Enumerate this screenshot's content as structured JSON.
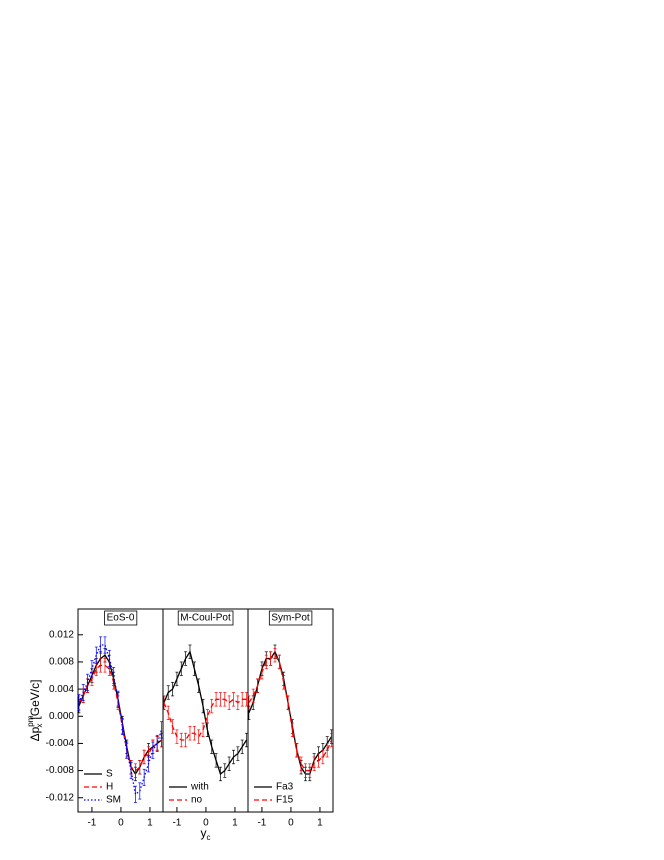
{
  "chart_data": [
    {
      "type": "line",
      "title": "EoS-0",
      "y_label": {
        "base": "Δp",
        "sup": "pm",
        "sub": "x",
        "unit": "[GeV/c]"
      },
      "x": [
        -1.45,
        -1.3,
        -1.15,
        -1.0,
        -0.85,
        -0.7,
        -0.55,
        -0.4,
        -0.25,
        -0.1,
        0.05,
        0.2,
        0.35,
        0.5,
        0.65,
        0.8,
        0.95,
        1.1,
        1.25,
        1.4
      ],
      "series": [
        {
          "name": "S",
          "color": "#000000",
          "dash": "solid",
          "values": [
            0.0015,
            0.003,
            0.0045,
            0.006,
            0.0075,
            0.0085,
            0.009,
            0.008,
            0.0055,
            0.0025,
            -0.001,
            -0.0045,
            -0.0075,
            -0.0085,
            -0.0075,
            -0.006,
            -0.005,
            -0.0045,
            -0.004,
            -0.0035
          ],
          "errors": [
            0.001,
            0.001,
            0.001,
            0.001,
            0.001,
            0.001,
            0.001,
            0.001,
            0.001,
            0.001,
            0.001,
            0.001,
            0.001,
            0.001,
            0.001,
            0.001,
            0.001,
            0.001,
            0.001,
            0.001
          ]
        },
        {
          "name": "H",
          "color": "#ff0000",
          "dash": "dashed",
          "values": [
            0.002,
            0.003,
            0.0045,
            0.0055,
            0.007,
            0.0075,
            0.0075,
            0.007,
            0.005,
            0.002,
            -0.0015,
            -0.005,
            -0.0075,
            -0.008,
            -0.0075,
            -0.006,
            -0.0055,
            -0.0045,
            -0.004,
            -0.0035
          ],
          "errors": [
            0.001,
            0.001,
            0.001,
            0.001,
            0.001,
            0.001,
            0.001,
            0.001,
            0.001,
            0.001,
            0.001,
            0.001,
            0.001,
            0.001,
            0.001,
            0.001,
            0.001,
            0.001,
            0.001,
            0.001
          ]
        },
        {
          "name": "SM",
          "color": "#0000ff",
          "dash": "dotted",
          "values": [
            0.002,
            0.0035,
            0.005,
            0.007,
            0.009,
            0.0105,
            0.0105,
            0.0085,
            0.006,
            0.0025,
            -0.0015,
            -0.005,
            -0.008,
            -0.0115,
            -0.011,
            -0.009,
            -0.007,
            -0.005,
            -0.004,
            -0.002
          ],
          "errors": [
            0.0012,
            0.0012,
            0.0012,
            0.0012,
            0.0012,
            0.0012,
            0.0012,
            0.0012,
            0.0012,
            0.0012,
            0.0012,
            0.0012,
            0.0012,
            0.0012,
            0.0012,
            0.0012,
            0.0012,
            0.0012,
            0.0012,
            0.0012
          ]
        }
      ],
      "xlim": [
        -1.48,
        1.45
      ],
      "xticks": [
        -1,
        0,
        1
      ],
      "ylim": [
        -0.0141,
        0.0158
      ],
      "yticks": [
        0.012,
        0.008,
        0.004,
        {
          "value": 0,
          "label": "0.000"
        },
        -0.004,
        -0.008,
        -0.012
      ],
      "legend": "lower left"
    },
    {
      "type": "line",
      "title": "M-Coul-Pot",
      "x_label": {
        "base": "y",
        "sub": "c"
      },
      "x": [
        -1.45,
        -1.3,
        -1.15,
        -1.0,
        -0.85,
        -0.7,
        -0.55,
        -0.4,
        -0.25,
        -0.1,
        0.05,
        0.2,
        0.35,
        0.5,
        0.65,
        0.8,
        0.95,
        1.1,
        1.25,
        1.4
      ],
      "series": [
        {
          "name": "with",
          "color": "#000000",
          "dash": "solid",
          "values": [
            0.002,
            0.0035,
            0.004,
            0.0055,
            0.007,
            0.0085,
            0.0095,
            0.007,
            0.0045,
            0.0015,
            -0.002,
            -0.0045,
            -0.0065,
            -0.0085,
            -0.008,
            -0.007,
            -0.006,
            -0.0055,
            -0.0045,
            -0.0035
          ],
          "errors": [
            0.001,
            0.001,
            0.001,
            0.001,
            0.001,
            0.001,
            0.001,
            0.001,
            0.001,
            0.001,
            0.001,
            0.001,
            0.001,
            0.001,
            0.001,
            0.001,
            0.001,
            0.001,
            0.001,
            0.001
          ]
        },
        {
          "name": "no",
          "color": "#ff0000",
          "dash": "dashed",
          "values": [
            0.002,
            0.0005,
            -0.0015,
            -0.003,
            -0.0035,
            -0.0035,
            -0.0025,
            -0.0025,
            -0.003,
            -0.002,
            0,
            0.0015,
            0.0025,
            0.0025,
            0.0025,
            0.002,
            0.0025,
            0.002,
            0.0025,
            0.0025
          ],
          "errors": [
            0.001,
            0.001,
            0.001,
            0.001,
            0.001,
            0.001,
            0.001,
            0.001,
            0.001,
            0.001,
            0.001,
            0.001,
            0.001,
            0.001,
            0.001,
            0.001,
            0.001,
            0.001,
            0.001,
            0.001
          ]
        }
      ],
      "xlim": [
        -1.48,
        1.45
      ],
      "xticks": [
        -1,
        0,
        1
      ],
      "ylim": [
        -0.0141,
        0.0158
      ],
      "legend": "lower left"
    },
    {
      "type": "line",
      "title": "Sym-Pot",
      "x": [
        -1.45,
        -1.3,
        -1.15,
        -1.0,
        -0.85,
        -0.7,
        -0.55,
        -0.4,
        -0.25,
        -0.1,
        0.05,
        0.2,
        0.35,
        0.5,
        0.65,
        0.8,
        0.95,
        1.1,
        1.25,
        1.4
      ],
      "series": [
        {
          "name": "Fa3",
          "color": "#000000",
          "dash": "solid",
          "values": [
            0.0005,
            0.002,
            0.0045,
            0.007,
            0.0085,
            0.0085,
            0.0095,
            0.008,
            0.0055,
            0.002,
            -0.0015,
            -0.005,
            -0.0075,
            -0.0085,
            -0.0085,
            -0.0065,
            -0.0055,
            -0.005,
            -0.004,
            -0.003
          ],
          "errors": [
            0.001,
            0.001,
            0.001,
            0.001,
            0.001,
            0.001,
            0.001,
            0.001,
            0.001,
            0.001,
            0.001,
            0.001,
            0.001,
            0.001,
            0.001,
            0.001,
            0.001,
            0.001,
            0.001,
            0.001
          ]
        },
        {
          "name": "F15",
          "color": "#ff0000",
          "dash": "dashed",
          "values": [
            0.002,
            0.003,
            0.0045,
            0.0065,
            0.008,
            0.0085,
            0.009,
            0.008,
            0.005,
            0.002,
            -0.002,
            -0.005,
            -0.007,
            -0.008,
            -0.008,
            -0.007,
            -0.0065,
            -0.006,
            -0.005,
            -0.0035
          ],
          "errors": [
            0.001,
            0.001,
            0.001,
            0.001,
            0.001,
            0.001,
            0.001,
            0.001,
            0.001,
            0.001,
            0.001,
            0.001,
            0.001,
            0.001,
            0.001,
            0.001,
            0.001,
            0.001,
            0.001,
            0.001
          ]
        }
      ],
      "xlim": [
        -1.48,
        1.45
      ],
      "xticks": [
        -1,
        0,
        1
      ],
      "ylim": [
        -0.0141,
        0.0158
      ],
      "legend": "lower left"
    }
  ]
}
